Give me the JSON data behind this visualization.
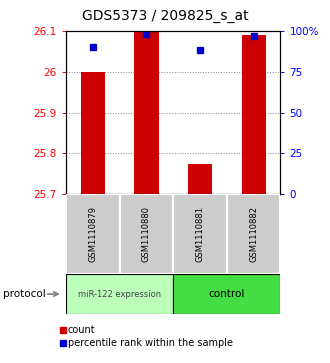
{
  "title": "GDS5373 / 209825_s_at",
  "samples": [
    "GSM1110879",
    "GSM1110880",
    "GSM1110881",
    "GSM1110882"
  ],
  "bar_values": [
    26.0,
    26.1,
    25.775,
    26.09
  ],
  "percentile_values": [
    90,
    98,
    88,
    97
  ],
  "y_min": 25.7,
  "y_max": 26.1,
  "y_ticks": [
    25.7,
    25.8,
    25.9,
    26.0,
    26.1
  ],
  "y_tick_labels": [
    "25.7",
    "25.8",
    "25.9",
    "26",
    "26.1"
  ],
  "y2_ticks": [
    0,
    25,
    50,
    75,
    100
  ],
  "y2_tick_labels": [
    "0",
    "25",
    "50",
    "75",
    "100%"
  ],
  "bar_color": "#cc0000",
  "bar_width": 0.45,
  "percentile_color": "#0000cc",
  "group1_label": "miR-122 expression",
  "group2_label": "control",
  "group1_color": "#bbffbb",
  "group2_color": "#44dd44",
  "sample_box_color": "#cccccc",
  "protocol_label": "protocol",
  "legend_count_label": "count",
  "legend_pct_label": "percentile rank within the sample",
  "dotted_line_color": "#888888",
  "background_color": "#ffffff",
  "title_fontsize": 10,
  "tick_fontsize": 7.5
}
